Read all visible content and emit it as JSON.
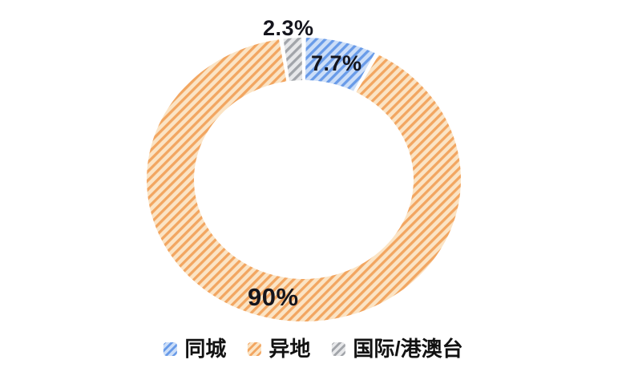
{
  "chart_data": {
    "type": "pie",
    "subtype": "donut",
    "title": "",
    "direction": "clockwise",
    "start_angle_deg": 0,
    "pad_angle_deg": 1.6,
    "hatch_style": "diagonal-forward-stripes",
    "legend_position": "bottom",
    "background": "#ffffff",
    "label_color": "#15151d",
    "segments": [
      {
        "label": "同城",
        "value": 7.7,
        "display": "7.7%",
        "stripe_color": "#699BE8",
        "bg_color": "#CCDEF8"
      },
      {
        "label": "异地",
        "value": 90,
        "display": "90%",
        "stripe_color": "#F2A661",
        "bg_color": "#FBE4C5"
      },
      {
        "label": "国际/港澳台",
        "value": 2.3,
        "display": "2.3%",
        "stripe_color": "#A2A5AA",
        "bg_color": "#E7E8EA"
      }
    ]
  }
}
